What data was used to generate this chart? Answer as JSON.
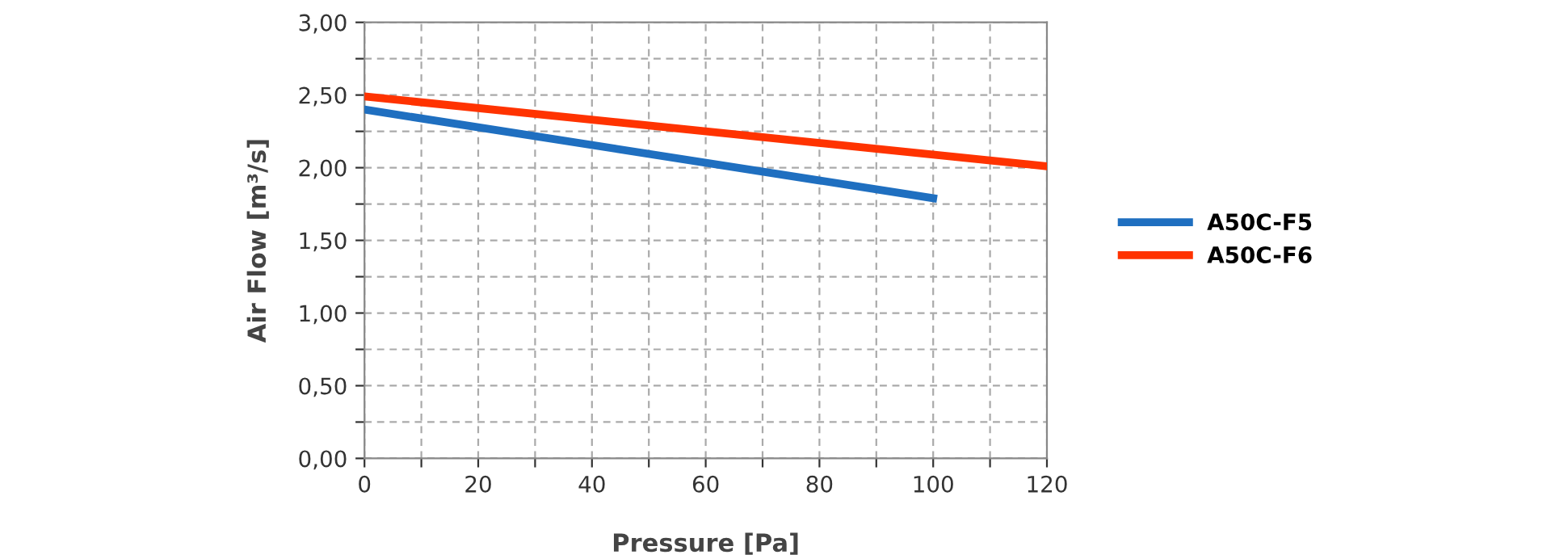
{
  "chart_data": {
    "type": "line",
    "xlabel": "Pressure [Pa]",
    "ylabel": "Air Flow [m³/s]",
    "series": [
      {
        "name": "A50C-F5",
        "color": "#1f6fc0",
        "x": [
          0,
          100
        ],
        "values": [
          2.4,
          1.79
        ]
      },
      {
        "name": "A50C-F6",
        "color": "#ff3300",
        "x": [
          0,
          120
        ],
        "values": [
          2.49,
          2.01
        ]
      }
    ],
    "xlim": [
      0,
      120
    ],
    "xticks": [
      0,
      {
        "value": 10,
        "label": null
      },
      20,
      {
        "value": 30,
        "label": null
      },
      40,
      {
        "value": 50,
        "label": null
      },
      60,
      {
        "value": 70,
        "label": null
      },
      80,
      {
        "value": 90,
        "label": null
      },
      100,
      {
        "value": 110,
        "label": null
      },
      120
    ],
    "ylim": [
      0,
      3
    ],
    "yticks": [
      {
        "value": 0,
        "label": "0,00"
      },
      {
        "value": 0.25,
        "label": null
      },
      {
        "value": 0.5,
        "label": "0,50"
      },
      {
        "value": 0.75,
        "label": null
      },
      {
        "value": 1,
        "label": "1,00"
      },
      {
        "value": 1.25,
        "label": null
      },
      {
        "value": 1.5,
        "label": "1,50"
      },
      {
        "value": 1.75,
        "label": null
      },
      {
        "value": 2,
        "label": "2,00"
      },
      {
        "value": 2.25,
        "label": null
      },
      {
        "value": 2.5,
        "label": "2,50"
      },
      {
        "value": 2.75,
        "label": null
      },
      {
        "value": 3,
        "label": "3,00"
      }
    ],
    "grid": true,
    "legend": "right",
    "marker": "none",
    "line_style": "solid"
  }
}
